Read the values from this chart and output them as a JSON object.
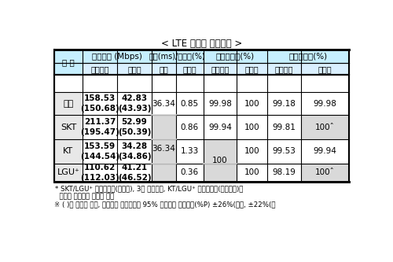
{
  "title": "< LTE 서비스 평가결과 >",
  "rows": [
    {
      "label": "전체",
      "dl": "158.53\n(150.68)",
      "ul": "42.83\n(43.93)",
      "delay": "36.34",
      "loss": "0.85",
      "acc_dl": "99.98",
      "acc_ul": "100",
      "tr_dl": "99.18",
      "tr_ul": "99.98"
    },
    {
      "label": "SKT",
      "dl": "211.37\n(195.47)",
      "ul": "52.99\n(50.39)",
      "delay": "",
      "loss": "0.86",
      "acc_dl": "99.94",
      "acc_ul": "100",
      "tr_dl": "99.81",
      "tr_ul": "100ˆ"
    },
    {
      "label": "KT",
      "dl": "153.59\n(144.54)",
      "ul": "34.28\n(34.86)",
      "delay": "36.34",
      "loss": "1.33",
      "acc_dl": "",
      "acc_ul": "100",
      "tr_dl": "99.53",
      "tr_ul": "99.94"
    },
    {
      "label": "LGU⁺",
      "dl": "110.62\n(112.03)",
      "ul": "41.21\n(46.52)",
      "delay": "",
      "loss": "0.36",
      "acc_dl": "100",
      "acc_ul": "100",
      "tr_dl": "98.19",
      "tr_ul": "100ˆ"
    }
  ],
  "footnote1": "* SKT/LGU⁺ 전송성공율(업로드), 3사 지연시간, KT/LGU⁺ 접속성공율(다운로드)은",
  "footnote2": "  통계적 유의미한 차이가 없음",
  "footnote3": "※ ( )는 전년도 결과, 전송속도 오차범위는 95% 신뢰수준 허용오차(%P) ±26%(다운, ±22%(업",
  "bg_color": "#ffffff",
  "header_bg": "#c6efff",
  "header_bg2": "#daf0ff",
  "shaded_bg": "#d9d9d9",
  "row_label_bg": "#e8e8e8",
  "border_color": "#000000"
}
